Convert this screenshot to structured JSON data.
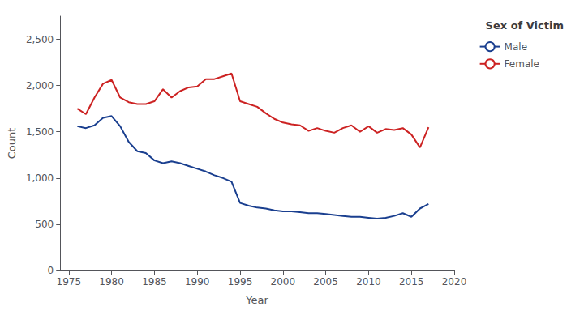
{
  "chart_data": {
    "type": "line",
    "x": [
      1976,
      1977,
      1978,
      1979,
      1980,
      1981,
      1982,
      1983,
      1984,
      1985,
      1986,
      1987,
      1988,
      1989,
      1990,
      1991,
      1992,
      1993,
      1994,
      1995,
      1996,
      1997,
      1998,
      1999,
      2000,
      2001,
      2002,
      2003,
      2004,
      2005,
      2006,
      2007,
      2008,
      2009,
      2010,
      2011,
      2012,
      2013,
      2014,
      2015,
      2016,
      2017
    ],
    "series": [
      {
        "name": "Male",
        "color": "#1A3F8F",
        "values": [
          1560,
          1540,
          1570,
          1650,
          1670,
          1560,
          1390,
          1290,
          1270,
          1190,
          1160,
          1180,
          1160,
          1130,
          1100,
          1070,
          1030,
          1000,
          960,
          730,
          700,
          680,
          670,
          650,
          640,
          640,
          630,
          620,
          620,
          610,
          600,
          590,
          580,
          580,
          570,
          560,
          570,
          590,
          620,
          580,
          670,
          720
        ]
      },
      {
        "name": "Female",
        "color": "#CC2222",
        "values": [
          1750,
          1690,
          1870,
          2020,
          2060,
          1870,
          1820,
          1800,
          1800,
          1830,
          1960,
          1870,
          1940,
          1980,
          1990,
          2070,
          2070,
          2100,
          2130,
          1830,
          1800,
          1770,
          1700,
          1640,
          1600,
          1580,
          1570,
          1510,
          1540,
          1510,
          1490,
          1540,
          1570,
          1500,
          1560,
          1490,
          1530,
          1520,
          1540,
          1470,
          1330,
          1550
        ]
      }
    ],
    "xlabel": "Year",
    "ylabel": "Count",
    "legend_title": "Sex of Victim",
    "legend": "right",
    "grid": false,
    "xlim": [
      1974,
      2020
    ],
    "xticks": [
      1975,
      1980,
      1985,
      1990,
      1995,
      2000,
      2005,
      2010,
      2015,
      2020
    ],
    "ylim": [
      0,
      2750
    ],
    "yticks": [
      0,
      500,
      {
        "value": 1000,
        "label": "1,000"
      },
      {
        "value": 1500,
        "label": "1,500"
      },
      {
        "value": 2000,
        "label": "2,000"
      },
      {
        "value": 2500,
        "label": "2,500"
      }
    ]
  }
}
